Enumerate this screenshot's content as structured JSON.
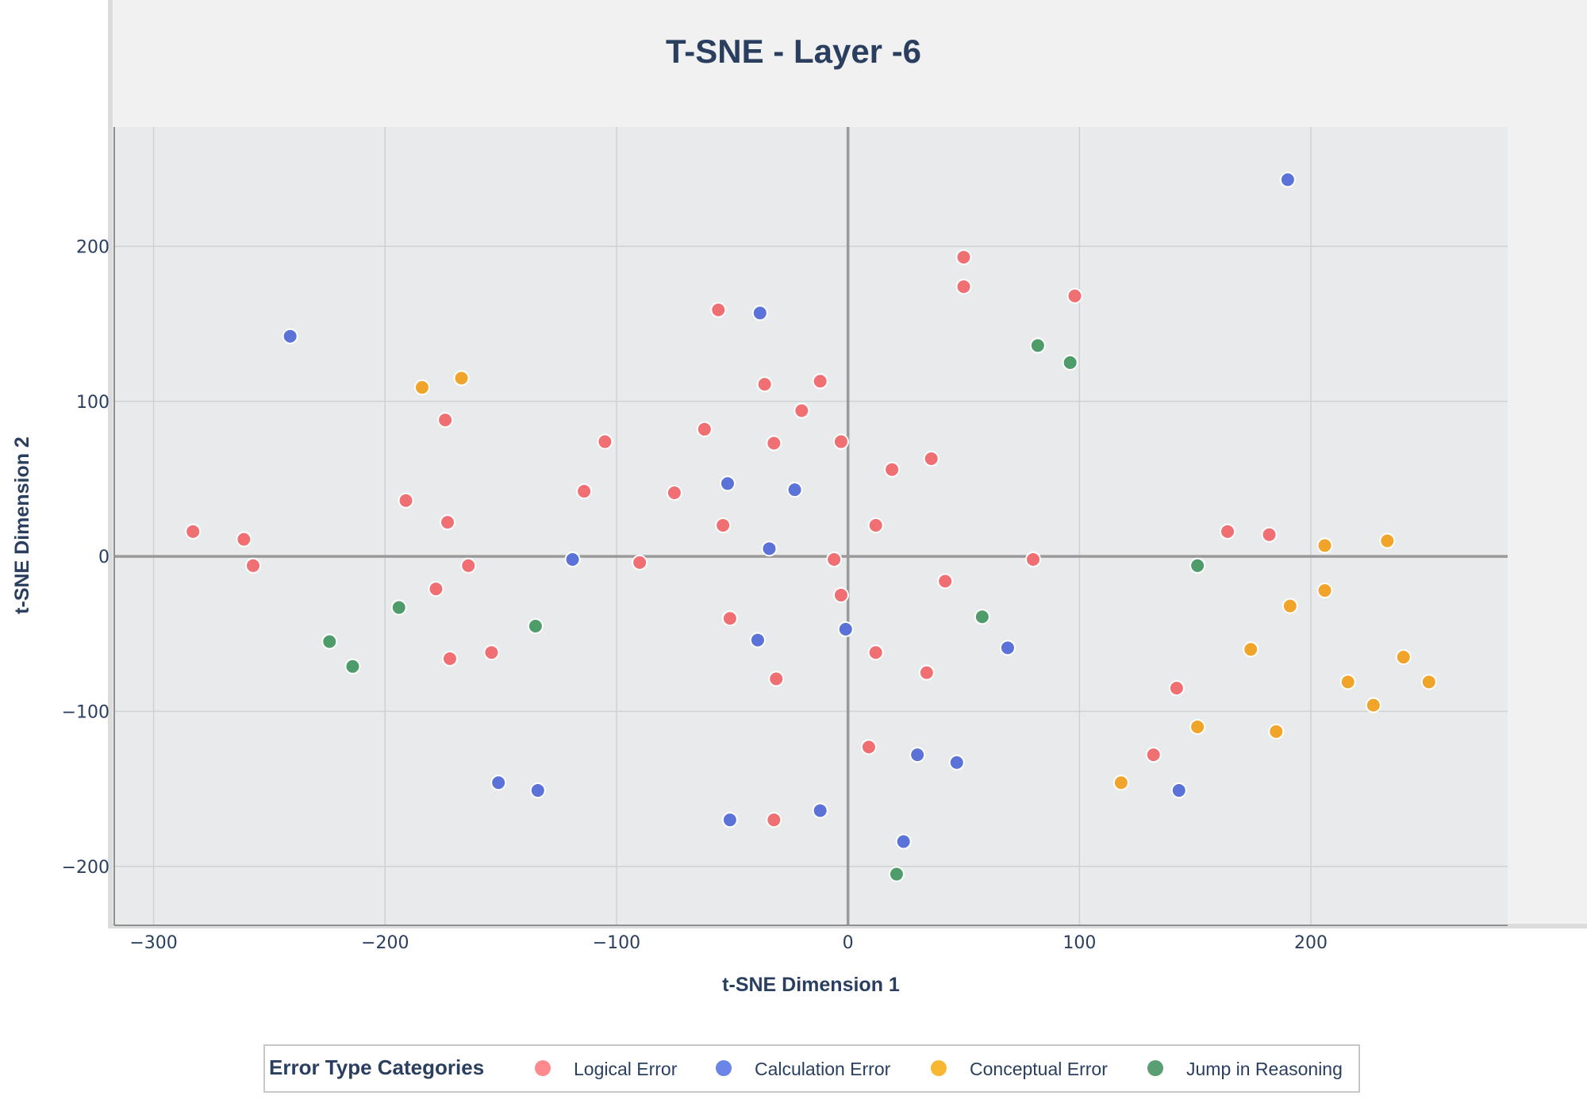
{
  "chart_data": {
    "type": "scatter",
    "title": "T-SNE - Layer -6",
    "xlabel": "t-SNE Dimension 1",
    "ylabel": "t-SNE Dimension 2",
    "xlim": [
      -317,
      285
    ],
    "ylim": [
      -238,
      277
    ],
    "x_ticks": [
      -300,
      -200,
      -100,
      0,
      100,
      200
    ],
    "y_ticks": [
      -200,
      -100,
      0,
      100,
      200
    ],
    "x_tick_labels": [
      "−300",
      "−200",
      "−100",
      "0",
      "100",
      "200"
    ],
    "y_tick_labels": [
      "−200",
      "−100",
      "0",
      "100",
      "200"
    ],
    "grid": true,
    "legend": {
      "title": "Error Type Categories",
      "position": "bottom-center"
    },
    "series": [
      {
        "name": "Logical Error",
        "color": "#EF6F73",
        "legend_color": "#FF8A8E",
        "points": [
          [
            -283,
            16
          ],
          [
            -261,
            11
          ],
          [
            -257,
            -6
          ],
          [
            -191,
            36
          ],
          [
            -174,
            88
          ],
          [
            -173,
            22
          ],
          [
            -164,
            -6
          ],
          [
            -178,
            -21
          ],
          [
            -172,
            -66
          ],
          [
            -154,
            -62
          ],
          [
            -114,
            42
          ],
          [
            -105,
            74
          ],
          [
            -90,
            -4
          ],
          [
            -75,
            41
          ],
          [
            -62,
            82
          ],
          [
            -56,
            159
          ],
          [
            -54,
            20
          ],
          [
            -51,
            -40
          ],
          [
            -36,
            111
          ],
          [
            -32,
            73
          ],
          [
            -31,
            -79
          ],
          [
            -32,
            -170
          ],
          [
            -20,
            94
          ],
          [
            -12,
            113
          ],
          [
            -3,
            74
          ],
          [
            -6,
            -2
          ],
          [
            -3,
            -25
          ],
          [
            12,
            20
          ],
          [
            12,
            -62
          ],
          [
            19,
            56
          ],
          [
            36,
            63
          ],
          [
            42,
            -16
          ],
          [
            34,
            -75
          ],
          [
            9,
            -123
          ],
          [
            50,
            193
          ],
          [
            50,
            174
          ],
          [
            98,
            168
          ],
          [
            80,
            -2
          ],
          [
            132,
            -128
          ],
          [
            142,
            -85
          ],
          [
            164,
            16
          ],
          [
            182,
            14
          ]
        ]
      },
      {
        "name": "Calculation Error",
        "color": "#5B72D8",
        "legend_color": "#6B85E6",
        "points": [
          [
            -241,
            142
          ],
          [
            -119,
            -2
          ],
          [
            -151,
            -146
          ],
          [
            -134,
            -151
          ],
          [
            -52,
            47
          ],
          [
            -51,
            -170
          ],
          [
            -38,
            157
          ],
          [
            -34,
            5
          ],
          [
            -39,
            -54
          ],
          [
            -23,
            43
          ],
          [
            -12,
            -164
          ],
          [
            -1,
            -47
          ],
          [
            30,
            -128
          ],
          [
            24,
            -184
          ],
          [
            47,
            -133
          ],
          [
            69,
            -59
          ],
          [
            143,
            -151
          ],
          [
            190,
            243
          ]
        ]
      },
      {
        "name": "Conceptual Error",
        "color": "#F0A429",
        "legend_color": "#F7B733",
        "points": [
          [
            -184,
            109
          ],
          [
            -167,
            115
          ],
          [
            118,
            -146
          ],
          [
            151,
            -110
          ],
          [
            174,
            -60
          ],
          [
            185,
            -113
          ],
          [
            191,
            -32
          ],
          [
            206,
            7
          ],
          [
            206,
            -22
          ],
          [
            216,
            -81
          ],
          [
            227,
            -96
          ],
          [
            233,
            10
          ],
          [
            240,
            -65
          ],
          [
            251,
            -81
          ]
        ]
      },
      {
        "name": "Jump in Reasoning",
        "color": "#4F9C6B",
        "legend_color": "#5A9E74",
        "points": [
          [
            -224,
            -55
          ],
          [
            -214,
            -71
          ],
          [
            -194,
            -33
          ],
          [
            -135,
            -45
          ],
          [
            21,
            -205
          ],
          [
            58,
            -39
          ],
          [
            82,
            136
          ],
          [
            96,
            125
          ],
          [
            151,
            -6
          ]
        ]
      }
    ]
  }
}
